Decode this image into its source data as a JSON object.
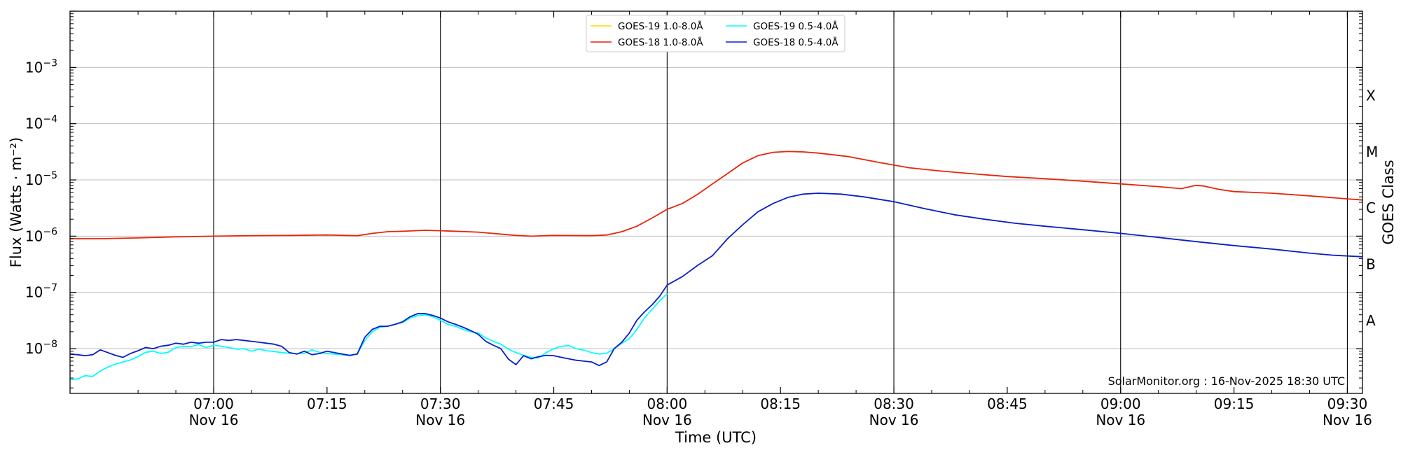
{
  "chart_data": {
    "type": "line",
    "xlabel": "Time (UTC)",
    "ylabel": "Flux (Watts · m⁻²)",
    "right_ylabel": "GOES Class",
    "y_scale": "log",
    "ylim": [
      1.6e-09,
      0.01
    ],
    "xlim": [
      "06:41",
      "09:32"
    ],
    "grid": "horizontal at decades, vertical lines every 30 min",
    "credit": "SolarMonitor.org : 16-Nov-2025 18:30 UTC",
    "legend_placement": "top-center",
    "x_ticks": [
      {
        "time": "07:00",
        "line1": "07:00",
        "line2": "Nov 16",
        "major": true
      },
      {
        "time": "07:15",
        "line1": "07:15",
        "line2": "",
        "major": false
      },
      {
        "time": "07:30",
        "line1": "07:30",
        "line2": "Nov 16",
        "major": true
      },
      {
        "time": "07:45",
        "line1": "07:45",
        "line2": "",
        "major": false
      },
      {
        "time": "08:00",
        "line1": "08:00",
        "line2": "Nov 16",
        "major": true
      },
      {
        "time": "08:15",
        "line1": "08:15",
        "line2": "",
        "major": false
      },
      {
        "time": "08:30",
        "line1": "08:30",
        "line2": "Nov 16",
        "major": true
      },
      {
        "time": "08:45",
        "line1": "08:45",
        "line2": "",
        "major": false
      },
      {
        "time": "09:00",
        "line1": "09:00",
        "line2": "Nov 16",
        "major": true
      },
      {
        "time": "09:15",
        "line1": "09:15",
        "line2": "",
        "major": false
      },
      {
        "time": "09:30",
        "line1": "09:30",
        "line2": "Nov 16",
        "major": true
      }
    ],
    "y_ticks": [
      {
        "exp": -8,
        "label": "10",
        "sup": "−8"
      },
      {
        "exp": -7,
        "label": "10",
        "sup": "−7"
      },
      {
        "exp": -6,
        "label": "10",
        "sup": "−6"
      },
      {
        "exp": -5,
        "label": "10",
        "sup": "−5"
      },
      {
        "exp": -4,
        "label": "10",
        "sup": "−4"
      },
      {
        "exp": -3,
        "label": "10",
        "sup": "−3"
      }
    ],
    "goes_classes": [
      {
        "label": "A",
        "exp": -7.5
      },
      {
        "label": "B",
        "exp": -6.5
      },
      {
        "label": "C",
        "exp": -5.5
      },
      {
        "label": "M",
        "exp": -4.5
      },
      {
        "label": "X",
        "exp": -3.5
      }
    ],
    "series": [
      {
        "name": "GOES-19 1.0-8.0Å",
        "color": "#FFD700",
        "points": []
      },
      {
        "name": "GOES-19 0.5-4.0Å",
        "color": "#00FFFF",
        "points": [
          [
            "06:41",
            2.8e-09
          ],
          [
            "06:42",
            2.9e-09
          ],
          [
            "06:43",
            3.3e-09
          ],
          [
            "06:44",
            3.2e-09
          ],
          [
            "06:45",
            4e-09
          ],
          [
            "06:46",
            4.7e-09
          ],
          [
            "06:47",
            5.3e-09
          ],
          [
            "06:48",
            5.8e-09
          ],
          [
            "06:49",
            6.3e-09
          ],
          [
            "06:50",
            7.2e-09
          ],
          [
            "06:51",
            8.6e-09
          ],
          [
            "06:52",
            9e-09
          ],
          [
            "06:53",
            8.2e-09
          ],
          [
            "06:54",
            8.6e-09
          ],
          [
            "06:55",
            1.05e-08
          ],
          [
            "06:56",
            1.1e-08
          ],
          [
            "06:57",
            1.08e-08
          ],
          [
            "06:58",
            1.18e-08
          ],
          [
            "06:59",
            1.05e-08
          ],
          [
            "07:00",
            1.15e-08
          ],
          [
            "07:01",
            1.1e-08
          ],
          [
            "07:02",
            1.05e-08
          ],
          [
            "07:03",
            9.8e-09
          ],
          [
            "07:04",
            1e-08
          ],
          [
            "07:05",
            9e-09
          ],
          [
            "07:06",
            9.8e-09
          ],
          [
            "07:07",
            9.2e-09
          ],
          [
            "07:08",
            8.9e-09
          ],
          [
            "07:09",
            8.5e-09
          ],
          [
            "07:10",
            8.3e-09
          ],
          [
            "07:11",
            8.1e-09
          ],
          [
            "07:12",
            8.3e-09
          ],
          [
            "07:13",
            9.5e-09
          ],
          [
            "07:14",
            8.6e-09
          ],
          [
            "07:15",
            8.2e-09
          ],
          [
            "07:16",
            8e-09
          ],
          [
            "07:17",
            7.8e-09
          ],
          [
            "07:18",
            7.5e-09
          ],
          [
            "07:19",
            8e-09
          ],
          [
            "07:20",
            1.4e-08
          ],
          [
            "07:21",
            2e-08
          ],
          [
            "07:22",
            2.4e-08
          ],
          [
            "07:23",
            2.5e-08
          ],
          [
            "07:24",
            2.7e-08
          ],
          [
            "07:25",
            2.9e-08
          ],
          [
            "07:26",
            3.5e-08
          ],
          [
            "07:27",
            3.9e-08
          ],
          [
            "07:28",
            4e-08
          ],
          [
            "07:29",
            3.7e-08
          ],
          [
            "07:30",
            3.2e-08
          ],
          [
            "07:31",
            2.7e-08
          ],
          [
            "07:32",
            2.5e-08
          ],
          [
            "07:33",
            2.2e-08
          ],
          [
            "07:34",
            2e-08
          ],
          [
            "07:35",
            1.9e-08
          ],
          [
            "07:36",
            1.55e-08
          ],
          [
            "07:37",
            1.35e-08
          ],
          [
            "07:38",
            1.2e-08
          ],
          [
            "07:39",
            9.8e-09
          ],
          [
            "07:40",
            8.5e-09
          ],
          [
            "07:41",
            7.6e-09
          ],
          [
            "07:42",
            7e-09
          ],
          [
            "07:43",
            6.8e-09
          ],
          [
            "07:44",
            8.5e-09
          ],
          [
            "07:45",
            1e-08
          ],
          [
            "07:46",
            1.1e-08
          ],
          [
            "07:47",
            1.13e-08
          ],
          [
            "07:48",
            1e-08
          ],
          [
            "07:49",
            9.4e-09
          ],
          [
            "07:50",
            8.5e-09
          ],
          [
            "07:51",
            8e-09
          ],
          [
            "07:52",
            8.3e-09
          ],
          [
            "07:53",
            1e-08
          ],
          [
            "07:54",
            1.25e-08
          ],
          [
            "07:55",
            1.5e-08
          ],
          [
            "07:56",
            2.2e-08
          ],
          [
            "07:57",
            3.5e-08
          ],
          [
            "07:58",
            5e-08
          ],
          [
            "07:59",
            7e-08
          ],
          [
            "08:00",
            9.5e-08
          ]
        ]
      },
      {
        "name": "GOES-18 1.0-8.0Å",
        "color": "#E8240A",
        "points": [
          [
            "06:41",
            9e-07
          ],
          [
            "06:45",
            9e-07
          ],
          [
            "06:50",
            9.3e-07
          ],
          [
            "06:55",
            9.7e-07
          ],
          [
            "07:00",
            1e-06
          ],
          [
            "07:05",
            1.02e-06
          ],
          [
            "07:10",
            1.03e-06
          ],
          [
            "07:15",
            1.05e-06
          ],
          [
            "07:19",
            1.02e-06
          ],
          [
            "07:21",
            1.12e-06
          ],
          [
            "07:23",
            1.2e-06
          ],
          [
            "07:25",
            1.22e-06
          ],
          [
            "07:28",
            1.27e-06
          ],
          [
            "07:30",
            1.25e-06
          ],
          [
            "07:35",
            1.18e-06
          ],
          [
            "07:40",
            1.03e-06
          ],
          [
            "07:42",
            1e-06
          ],
          [
            "07:45",
            1.03e-06
          ],
          [
            "07:50",
            1.02e-06
          ],
          [
            "07:52",
            1.05e-06
          ],
          [
            "07:54",
            1.2e-06
          ],
          [
            "07:56",
            1.5e-06
          ],
          [
            "07:58",
            2.1e-06
          ],
          [
            "08:00",
            3e-06
          ],
          [
            "08:02",
            3.8e-06
          ],
          [
            "08:04",
            5.5e-06
          ],
          [
            "08:06",
            8.5e-06
          ],
          [
            "08:08",
            1.3e-05
          ],
          [
            "08:10",
            2e-05
          ],
          [
            "08:12",
            2.7e-05
          ],
          [
            "08:14",
            3.1e-05
          ],
          [
            "08:16",
            3.2e-05
          ],
          [
            "08:18",
            3.15e-05
          ],
          [
            "08:20",
            3e-05
          ],
          [
            "08:24",
            2.6e-05
          ],
          [
            "08:28",
            2.05e-05
          ],
          [
            "08:32",
            1.65e-05
          ],
          [
            "08:36",
            1.45e-05
          ],
          [
            "08:40",
            1.3e-05
          ],
          [
            "08:45",
            1.15e-05
          ],
          [
            "08:50",
            1.05e-05
          ],
          [
            "08:55",
            9.5e-06
          ],
          [
            "09:00",
            8.5e-06
          ],
          [
            "09:05",
            7.6e-06
          ],
          [
            "09:08",
            7e-06
          ],
          [
            "09:10",
            8e-06
          ],
          [
            "09:11",
            7.8e-06
          ],
          [
            "09:13",
            6.8e-06
          ],
          [
            "09:15",
            6.2e-06
          ],
          [
            "09:20",
            5.8e-06
          ],
          [
            "09:25",
            5.2e-06
          ],
          [
            "09:30",
            4.6e-06
          ],
          [
            "09:32",
            4.4e-06
          ]
        ]
      },
      {
        "name": "GOES-18 0.5-4.0Å",
        "color": "#0A1EC8",
        "points": [
          [
            "06:41",
            8e-09
          ],
          [
            "06:42",
            7.8e-09
          ],
          [
            "06:43",
            7.5e-09
          ],
          [
            "06:44",
            7.8e-09
          ],
          [
            "06:45",
            9.5e-09
          ],
          [
            "06:46",
            8.5e-09
          ],
          [
            "06:47",
            7.6e-09
          ],
          [
            "06:48",
            7e-09
          ],
          [
            "06:49",
            8.2e-09
          ],
          [
            "06:50",
            9.2e-09
          ],
          [
            "06:51",
            1.05e-08
          ],
          [
            "06:52",
            1e-08
          ],
          [
            "06:53",
            1.1e-08
          ],
          [
            "06:54",
            1.15e-08
          ],
          [
            "06:55",
            1.25e-08
          ],
          [
            "06:56",
            1.2e-08
          ],
          [
            "06:57",
            1.3e-08
          ],
          [
            "06:58",
            1.25e-08
          ],
          [
            "06:59",
            1.3e-08
          ],
          [
            "07:00",
            1.3e-08
          ],
          [
            "07:01",
            1.45e-08
          ],
          [
            "07:02",
            1.4e-08
          ],
          [
            "07:03",
            1.45e-08
          ],
          [
            "07:04",
            1.4e-08
          ],
          [
            "07:05",
            1.35e-08
          ],
          [
            "07:06",
            1.3e-08
          ],
          [
            "07:07",
            1.25e-08
          ],
          [
            "07:08",
            1.2e-08
          ],
          [
            "07:09",
            1.1e-08
          ],
          [
            "07:10",
            8.5e-09
          ],
          [
            "07:11",
            8e-09
          ],
          [
            "07:12",
            9e-09
          ],
          [
            "07:13",
            7.8e-09
          ],
          [
            "07:14",
            8.2e-09
          ],
          [
            "07:15",
            9e-09
          ],
          [
            "07:16",
            8.5e-09
          ],
          [
            "07:17",
            8e-09
          ],
          [
            "07:18",
            7.6e-09
          ],
          [
            "07:19",
            8e-09
          ],
          [
            "07:20",
            1.6e-08
          ],
          [
            "07:21",
            2.2e-08
          ],
          [
            "07:22",
            2.5e-08
          ],
          [
            "07:23",
            2.5e-08
          ],
          [
            "07:24",
            2.7e-08
          ],
          [
            "07:25",
            3e-08
          ],
          [
            "07:26",
            3.7e-08
          ],
          [
            "07:27",
            4.2e-08
          ],
          [
            "07:28",
            4.2e-08
          ],
          [
            "07:29",
            3.9e-08
          ],
          [
            "07:30",
            3.5e-08
          ],
          [
            "07:31",
            3e-08
          ],
          [
            "07:32",
            2.7e-08
          ],
          [
            "07:33",
            2.4e-08
          ],
          [
            "07:34",
            2.1e-08
          ],
          [
            "07:35",
            1.8e-08
          ],
          [
            "07:36",
            1.35e-08
          ],
          [
            "07:37",
            1.15e-08
          ],
          [
            "07:38",
            1e-08
          ],
          [
            "07:39",
            6.5e-09
          ],
          [
            "07:40",
            5.2e-09
          ],
          [
            "07:41",
            7.5e-09
          ],
          [
            "07:42",
            6.6e-09
          ],
          [
            "07:43",
            7.2e-09
          ],
          [
            "07:44",
            7.6e-09
          ],
          [
            "07:45",
            7.5e-09
          ],
          [
            "07:46",
            7e-09
          ],
          [
            "07:47",
            6.6e-09
          ],
          [
            "07:48",
            6.2e-09
          ],
          [
            "07:49",
            6e-09
          ],
          [
            "07:50",
            5.8e-09
          ],
          [
            "07:51",
            5e-09
          ],
          [
            "07:52",
            5.8e-09
          ],
          [
            "07:53",
            1e-08
          ],
          [
            "07:54",
            1.3e-08
          ],
          [
            "07:55",
            1.9e-08
          ],
          [
            "07:56",
            3.2e-08
          ],
          [
            "07:57",
            4.5e-08
          ],
          [
            "07:58",
            6e-08
          ],
          [
            "07:59",
            8.5e-08
          ],
          [
            "08:00",
            1.35e-07
          ],
          [
            "08:02",
            1.9e-07
          ],
          [
            "08:04",
            3e-07
          ],
          [
            "08:06",
            4.5e-07
          ],
          [
            "08:08",
            9e-07
          ],
          [
            "08:10",
            1.6e-06
          ],
          [
            "08:12",
            2.7e-06
          ],
          [
            "08:14",
            3.8e-06
          ],
          [
            "08:16",
            4.9e-06
          ],
          [
            "08:18",
            5.6e-06
          ],
          [
            "08:20",
            5.8e-06
          ],
          [
            "08:23",
            5.6e-06
          ],
          [
            "08:26",
            5e-06
          ],
          [
            "08:30",
            4.1e-06
          ],
          [
            "08:34",
            3.1e-06
          ],
          [
            "08:38",
            2.4e-06
          ],
          [
            "08:42",
            2e-06
          ],
          [
            "08:46",
            1.7e-06
          ],
          [
            "08:50",
            1.5e-06
          ],
          [
            "08:55",
            1.3e-06
          ],
          [
            "09:00",
            1.12e-06
          ],
          [
            "09:05",
            9.5e-07
          ],
          [
            "09:10",
            8e-07
          ],
          [
            "09:15",
            6.8e-07
          ],
          [
            "09:20",
            5.9e-07
          ],
          [
            "09:25",
            5e-07
          ],
          [
            "09:28",
            4.6e-07
          ],
          [
            "09:32",
            4.3e-07
          ]
        ]
      }
    ]
  }
}
